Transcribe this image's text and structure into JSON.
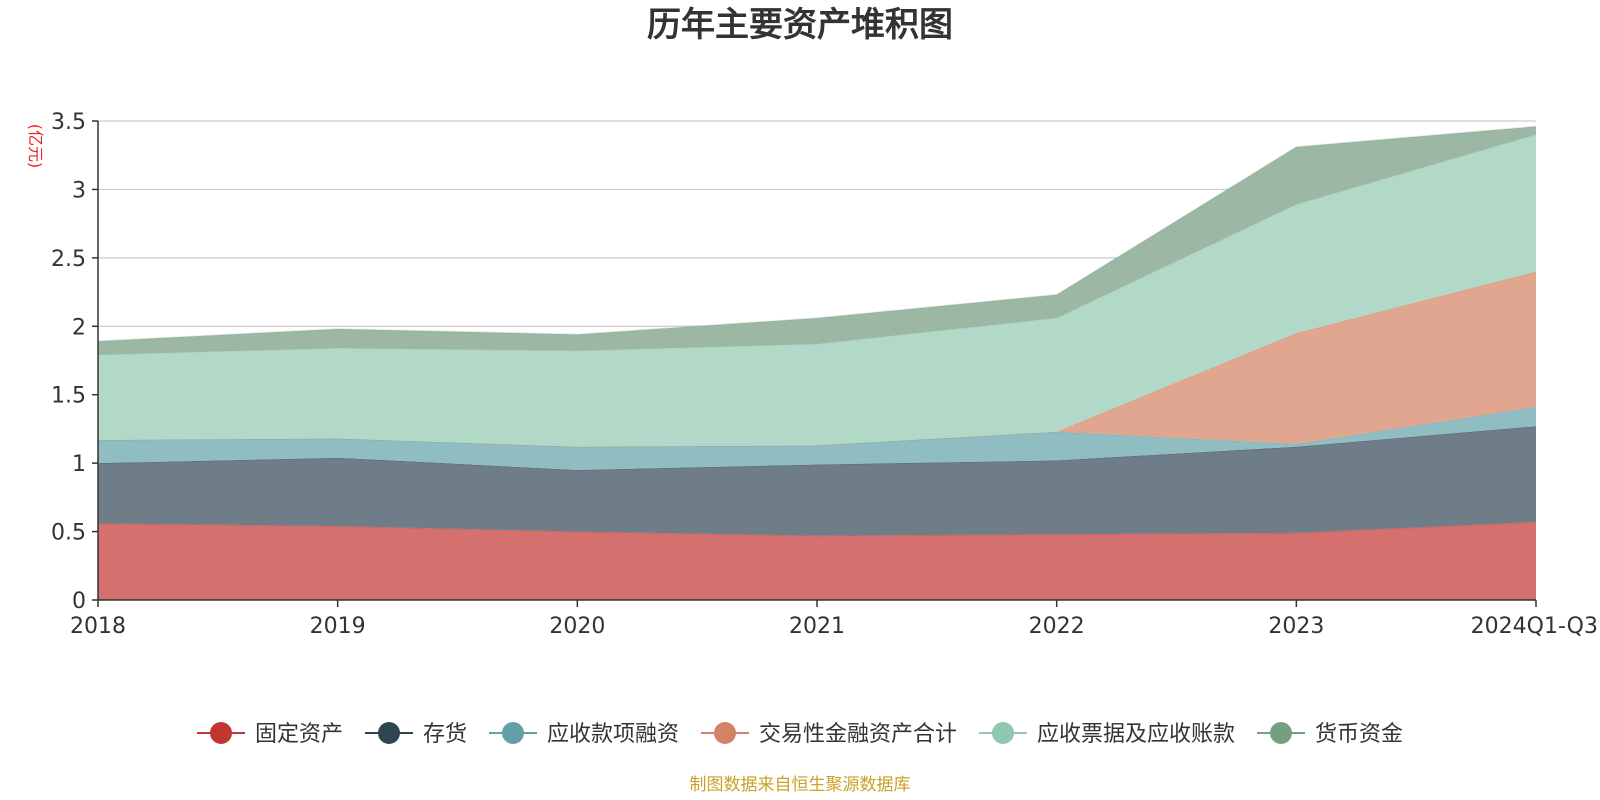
{
  "chart_data": {
    "type": "area",
    "stacked": true,
    "title": "历年主要资产堆积图",
    "ylabel": "(亿元)",
    "xlabel": "",
    "categories": [
      "2018",
      "2019",
      "2020",
      "2021",
      "2022",
      "2023",
      "2024Q1-Q3"
    ],
    "ylim": [
      0,
      3.5
    ],
    "yticks": [
      0,
      0.5,
      1,
      1.5,
      2,
      2.5,
      3,
      3.5
    ],
    "ytick_labels": [
      "0",
      "0.5",
      "1",
      "1.5",
      "2",
      "2.5",
      "3",
      "3.5"
    ],
    "grid": true,
    "legend_position": "bottom",
    "series": [
      {
        "name": "固定资产",
        "color": "#c23531",
        "fill": "#d4716e",
        "values": [
          0.56,
          0.54,
          0.5,
          0.47,
          0.48,
          0.49,
          0.57
        ]
      },
      {
        "name": "存货",
        "color": "#2f4554",
        "fill": "#6e7d88",
        "values": [
          0.44,
          0.5,
          0.45,
          0.52,
          0.54,
          0.63,
          0.7
        ]
      },
      {
        "name": "应收款项融资",
        "color": "#61a0a8",
        "fill": "#90bdc2",
        "values": [
          0.17,
          0.14,
          0.17,
          0.14,
          0.21,
          0.02,
          0.14
        ]
      },
      {
        "name": "交易性金融资产合计",
        "color": "#d48265",
        "fill": "#e1a690",
        "values": [
          0.0,
          0.0,
          0.0,
          0.0,
          0.0,
          0.81,
          0.99
        ]
      },
      {
        "name": "应收票据及应收账款",
        "color": "#91c7ae",
        "fill": "#b2d9c7",
        "values": [
          0.62,
          0.66,
          0.7,
          0.74,
          0.83,
          0.94,
          1.0
        ]
      },
      {
        "name": "货币资金",
        "color": "#749f83",
        "fill": "#9cb8a4",
        "values": [
          0.1,
          0.14,
          0.12,
          0.19,
          0.17,
          0.42,
          0.06
        ]
      }
    ],
    "source_note": "制图数据来自恒生聚源数据库"
  }
}
